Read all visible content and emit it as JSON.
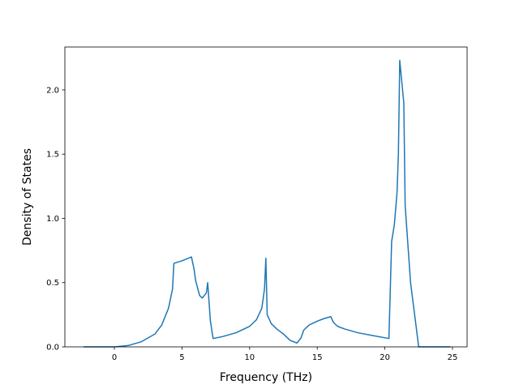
{
  "chart_data": {
    "type": "line",
    "x_label": "Frequency (THz)",
    "y_label": "Density of States",
    "x": [
      -2.28,
      0,
      1,
      2,
      3,
      3.5,
      4,
      4.3,
      4.4,
      5,
      5.7,
      5.9,
      6.0,
      6.3,
      6.5,
      6.8,
      6.9,
      7.1,
      7.3,
      8,
      9,
      10,
      10.5,
      10.9,
      11.1,
      11.2,
      11.3,
      11.6,
      12,
      12.5,
      13,
      13.5,
      13.8,
      14,
      14.4,
      15,
      15.5,
      16,
      16.2,
      16.5,
      17,
      18,
      19,
      20.3,
      20.5,
      20.7,
      20.9,
      21.0,
      21.1,
      21.4,
      21.5,
      21.7,
      21.9,
      22.2,
      22.5,
      24.85
    ],
    "series": [
      {
        "color": "#1f77b4",
        "values": [
          0,
          0,
          0.01,
          0.04,
          0.1,
          0.17,
          0.3,
          0.45,
          0.65,
          0.67,
          0.7,
          0.6,
          0.52,
          0.4,
          0.38,
          0.42,
          0.5,
          0.2,
          0.065,
          0.08,
          0.11,
          0.16,
          0.21,
          0.3,
          0.45,
          0.69,
          0.25,
          0.18,
          0.14,
          0.1,
          0.05,
          0.03,
          0.07,
          0.13,
          0.17,
          0.2,
          0.22,
          0.235,
          0.19,
          0.16,
          0.14,
          0.11,
          0.09,
          0.065,
          0.82,
          0.95,
          1.2,
          1.5,
          2.23,
          1.9,
          1.1,
          0.8,
          0.5,
          0.25,
          0,
          0
        ]
      }
    ],
    "xlim": [
      -3.66,
      26.08
    ],
    "ylim": [
      0,
      2.334
    ],
    "xticks": [
      0,
      5,
      10,
      15,
      20,
      25
    ],
    "yticks": [
      {
        "value": 0,
        "label": "0.0"
      },
      0.5,
      {
        "value": 1,
        "label": "1.0"
      },
      1.5,
      {
        "value": 2,
        "label": "2.0"
      }
    ]
  }
}
